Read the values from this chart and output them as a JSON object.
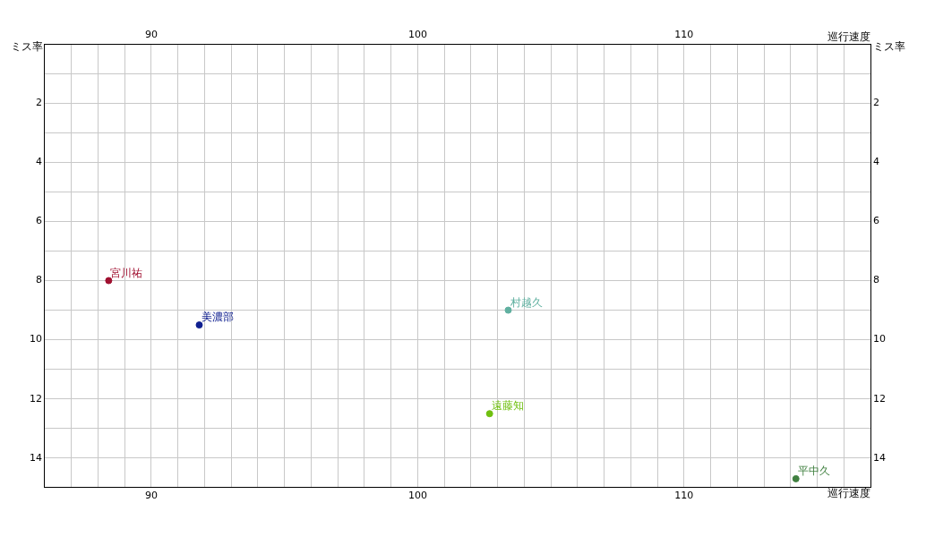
{
  "chart_data": {
    "type": "scatter",
    "xlabel": "巡行速度",
    "x2label": "巡行速度",
    "ylabel": "ミス率",
    "y2label": "ミス率",
    "xlim": [
      86,
      117
    ],
    "x2lim": [
      86,
      117
    ],
    "ylim": [
      15,
      0
    ],
    "y2lim": [
      15,
      0
    ],
    "xticks": [
      {
        "value": 86,
        "label": null
      },
      {
        "value": 87,
        "label": null
      },
      {
        "value": 88,
        "label": null
      },
      {
        "value": 89,
        "label": null
      },
      90,
      {
        "value": 91,
        "label": null
      },
      {
        "value": 92,
        "label": null
      },
      {
        "value": 93,
        "label": null
      },
      {
        "value": 94,
        "label": null
      },
      {
        "value": 95,
        "label": null
      },
      {
        "value": 96,
        "label": null
      },
      {
        "value": 97,
        "label": null
      },
      {
        "value": 98,
        "label": null
      },
      {
        "value": 99,
        "label": null
      },
      100,
      {
        "value": 101,
        "label": null
      },
      {
        "value": 102,
        "label": null
      },
      {
        "value": 103,
        "label": null
      },
      {
        "value": 104,
        "label": null
      },
      {
        "value": 105,
        "label": null
      },
      {
        "value": 106,
        "label": null
      },
      {
        "value": 107,
        "label": null
      },
      {
        "value": 108,
        "label": null
      },
      {
        "value": 109,
        "label": null
      },
      110,
      {
        "value": 111,
        "label": null
      },
      {
        "value": 112,
        "label": null
      },
      {
        "value": 113,
        "label": null
      },
      {
        "value": 114,
        "label": null
      },
      {
        "value": 115,
        "label": null
      },
      {
        "value": 116,
        "label": null
      },
      {
        "value": 117,
        "label": null
      }
    ],
    "x2ticks": [
      90,
      100,
      110
    ],
    "yticks": [
      {
        "value": 0,
        "label": null
      },
      {
        "value": 1,
        "label": null
      },
      2,
      {
        "value": 3,
        "label": null
      },
      4,
      {
        "value": 5,
        "label": null
      },
      6,
      {
        "value": 7,
        "label": null
      },
      8,
      {
        "value": 9,
        "label": null
      },
      10,
      {
        "value": 11,
        "label": null
      },
      12,
      {
        "value": 13,
        "label": null
      },
      14,
      {
        "value": 15,
        "label": null
      }
    ],
    "y2ticks": [
      2,
      4,
      6,
      8,
      10,
      12,
      14
    ],
    "grid": true,
    "legend": false,
    "marker": "circle",
    "series": [
      {
        "name": "宮川祐",
        "color": "#a01030",
        "x": [
          88.4
        ],
        "values": [
          8.0
        ]
      },
      {
        "name": "美濃部",
        "color": "#102090",
        "x": [
          91.8
        ],
        "values": [
          9.5
        ]
      },
      {
        "name": "村越久",
        "color": "#60b0a0",
        "x": [
          103.4
        ],
        "values": [
          9.0
        ]
      },
      {
        "name": "遠藤知",
        "color": "#70c010",
        "x": [
          102.7
        ],
        "values": [
          12.5
        ]
      },
      {
        "name": "平中久",
        "color": "#408040",
        "x": [
          114.2
        ],
        "values": [
          14.7
        ]
      }
    ]
  }
}
